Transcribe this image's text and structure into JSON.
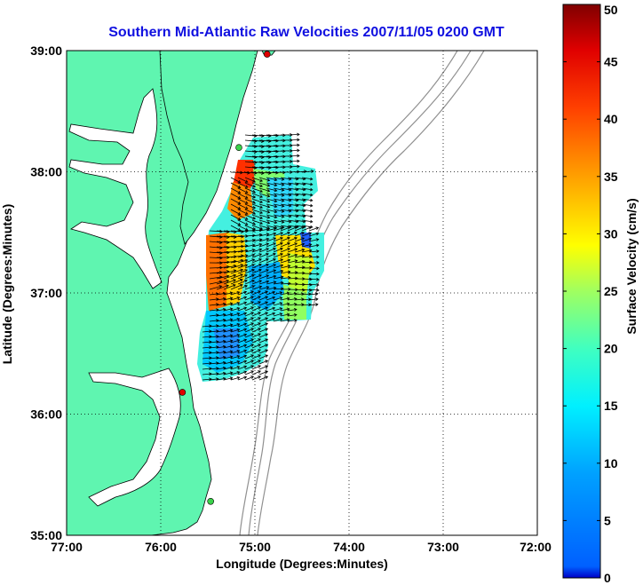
{
  "title": "Southern Mid-Atlantic Raw Velocities 2007/11/05 0200 GMT",
  "map": {
    "xlabel": "Longitude (Degrees:Minutes)",
    "ylabel": "Latitude (Degrees:Minutes)",
    "x_ticks": [
      "77:00",
      "76:00",
      "75:00",
      "74:00",
      "73:00",
      "72:00"
    ],
    "y_ticks": [
      "39:00",
      "38:00",
      "37:00",
      "36:00",
      "35:00"
    ],
    "lon_range": [
      -77,
      -72
    ],
    "lat_range": [
      35,
      39
    ],
    "land_color": "#5ff5b0",
    "grid": "dotted",
    "stations": [
      {
        "name": "station",
        "lon": -74.87,
        "lat": 38.97,
        "color": "#e00000"
      },
      {
        "name": "station",
        "lon": -75.17,
        "lat": 38.2,
        "color": "#3ad24a"
      },
      {
        "name": "station",
        "lon": -75.77,
        "lat": 36.18,
        "color": "#e00000"
      },
      {
        "name": "station",
        "lon": -75.47,
        "lat": 35.28,
        "color": "#3ad24a"
      }
    ]
  },
  "colorbar": {
    "label": "Surface Velocity (cm/s)",
    "ticks": [
      "0",
      "5",
      "10",
      "15",
      "20",
      "25",
      "30",
      "35",
      "40",
      "45",
      "50"
    ],
    "range": [
      0,
      50
    ]
  }
}
